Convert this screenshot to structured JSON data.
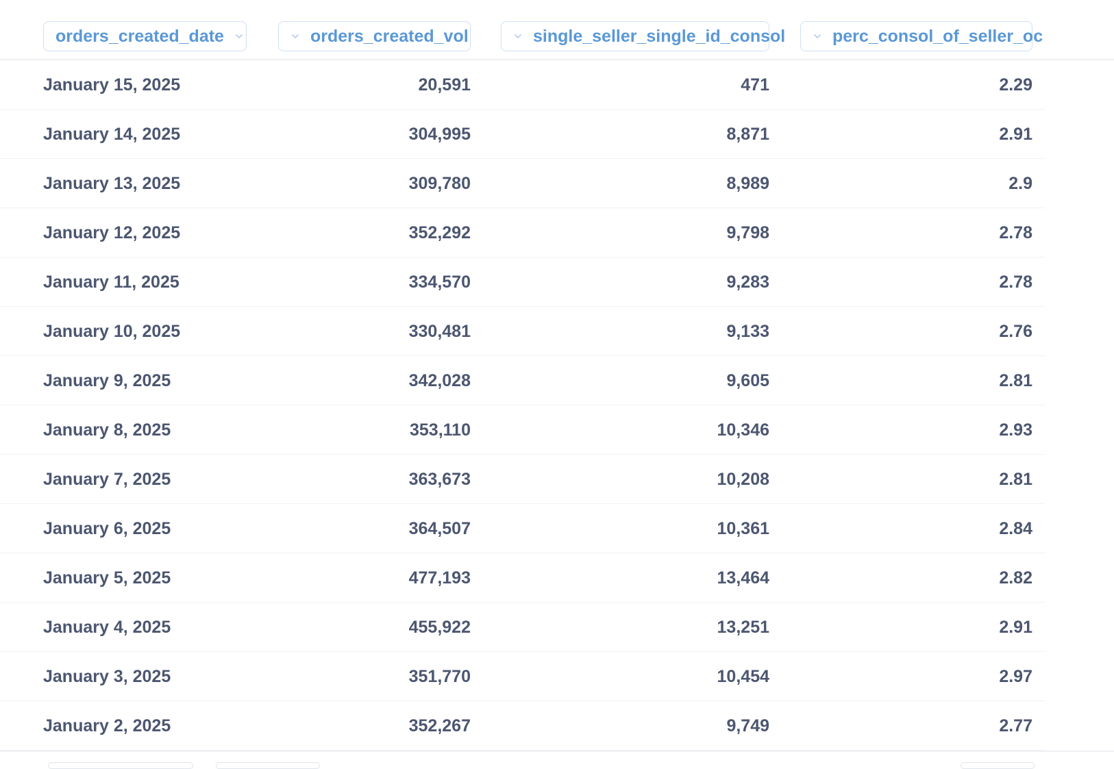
{
  "table": {
    "columns": [
      {
        "key": "orders_created_date",
        "label": "orders_created_date"
      },
      {
        "key": "orders_created_vol",
        "label": "orders_created_vol"
      },
      {
        "key": "single_seller_single_id_consol",
        "label": "single_seller_single_id_consol"
      },
      {
        "key": "perc_consol_of_seller_oc",
        "label": "perc_consol_of_seller_oc"
      }
    ],
    "rows": [
      {
        "date": "January 15, 2025",
        "vol": "20,591",
        "ssid": "471",
        "perc": "2.29"
      },
      {
        "date": "January 14, 2025",
        "vol": "304,995",
        "ssid": "8,871",
        "perc": "2.91"
      },
      {
        "date": "January 13, 2025",
        "vol": "309,780",
        "ssid": "8,989",
        "perc": "2.9"
      },
      {
        "date": "January 12, 2025",
        "vol": "352,292",
        "ssid": "9,798",
        "perc": "2.78"
      },
      {
        "date": "January 11, 2025",
        "vol": "334,570",
        "ssid": "9,283",
        "perc": "2.78"
      },
      {
        "date": "January 10, 2025",
        "vol": "330,481",
        "ssid": "9,133",
        "perc": "2.76"
      },
      {
        "date": "January 9, 2025",
        "vol": "342,028",
        "ssid": "9,605",
        "perc": "2.81"
      },
      {
        "date": "January 8, 2025",
        "vol": "353,110",
        "ssid": "10,346",
        "perc": "2.93"
      },
      {
        "date": "January 7, 2025",
        "vol": "363,673",
        "ssid": "10,208",
        "perc": "2.81"
      },
      {
        "date": "January 6, 2025",
        "vol": "364,507",
        "ssid": "10,361",
        "perc": "2.84"
      },
      {
        "date": "January 5, 2025",
        "vol": "477,193",
        "ssid": "13,464",
        "perc": "2.82"
      },
      {
        "date": "January 4, 2025",
        "vol": "455,922",
        "ssid": "13,251",
        "perc": "2.91"
      },
      {
        "date": "January 3, 2025",
        "vol": "351,770",
        "ssid": "10,454",
        "perc": "2.97"
      },
      {
        "date": "January 2, 2025",
        "vol": "352,267",
        "ssid": "9,749",
        "perc": "2.77"
      }
    ]
  },
  "icons": {
    "column_menu": "chevron-down-icon"
  },
  "colors": {
    "header_text": "#5a98d6",
    "header_border": "#cfdff3",
    "cell_text": "#4c5670",
    "row_divider": "#f1f2f5"
  }
}
